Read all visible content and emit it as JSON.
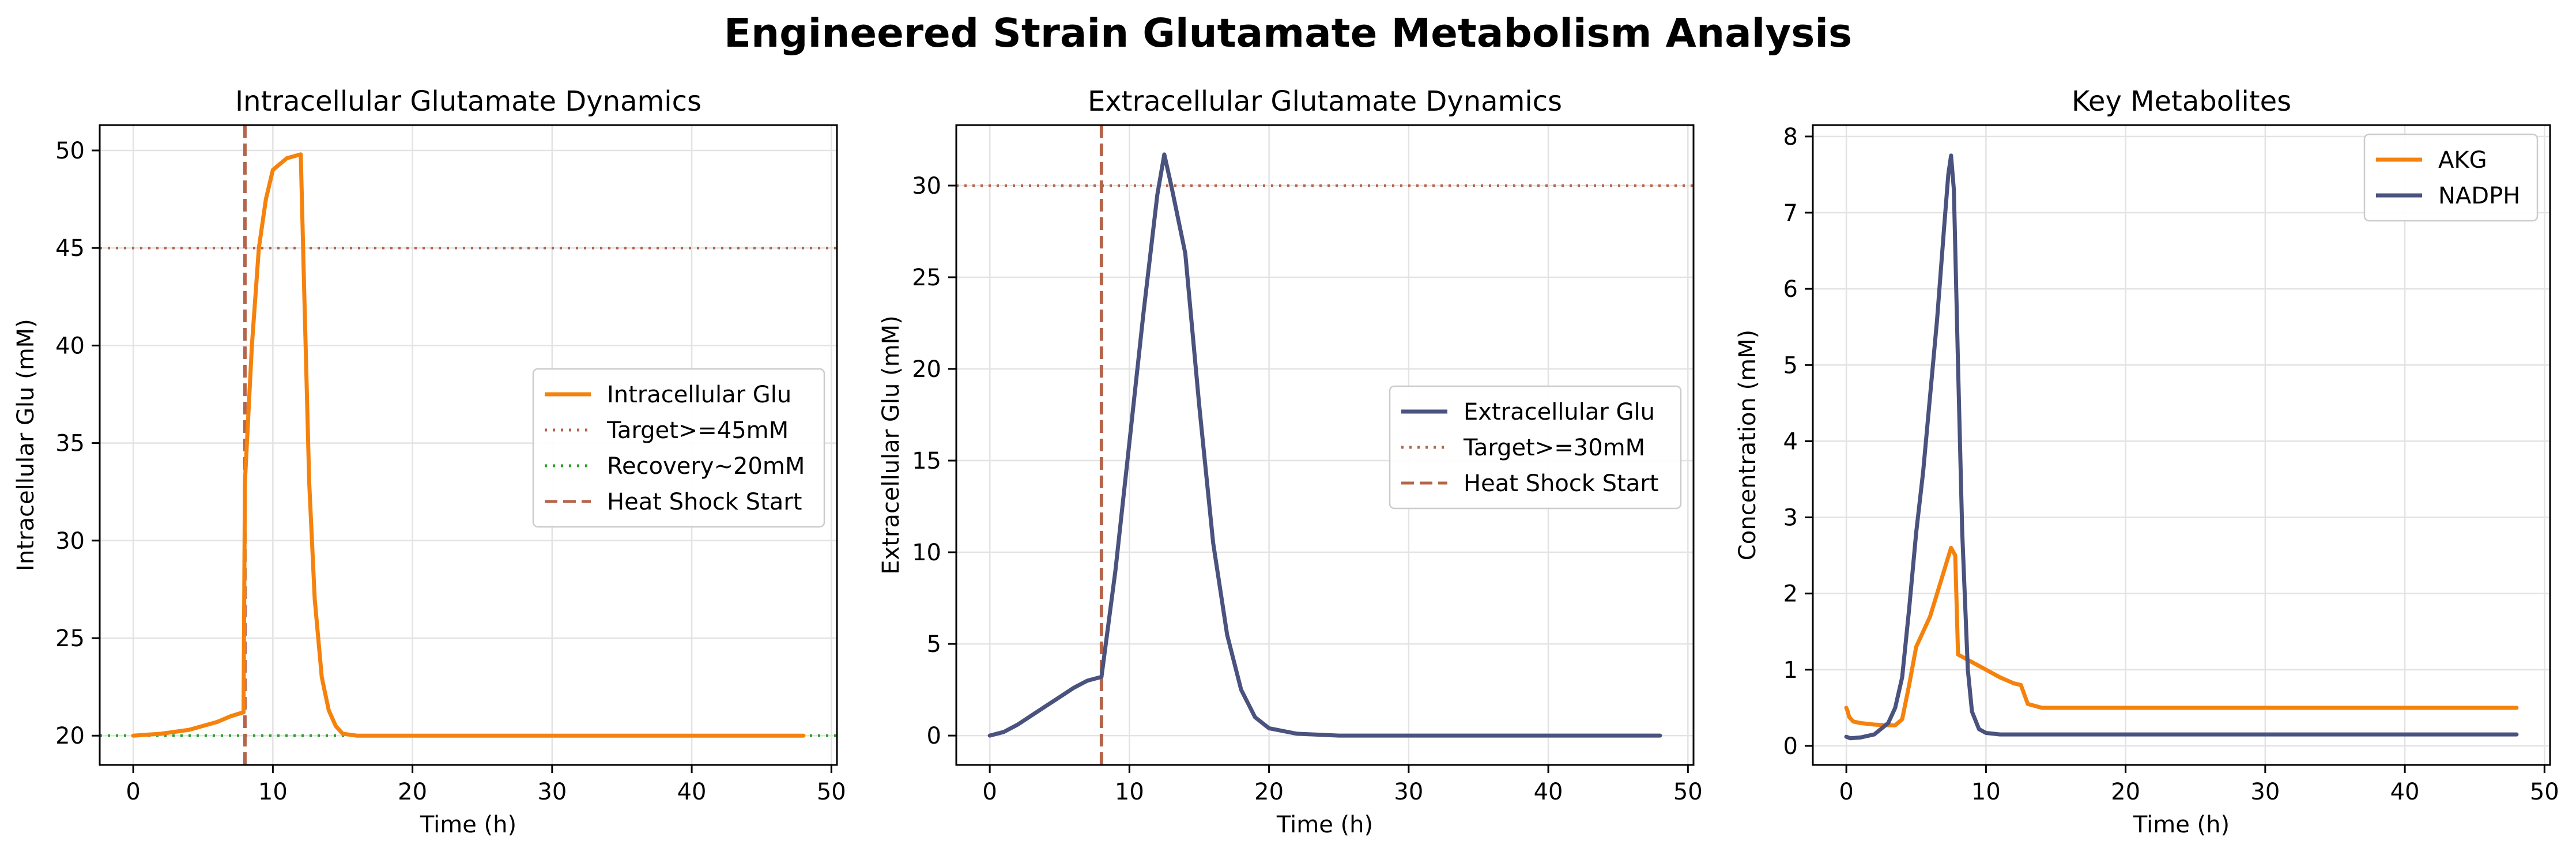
{
  "figure": {
    "title": "Engineered Strain Glutamate Metabolism Analysis"
  },
  "colors": {
    "orange": "#f5820d",
    "navy": "#4a527e",
    "rust": "#b5654a",
    "green": "#2ca02c",
    "grid": "#e3e3e3"
  },
  "chart_data": [
    {
      "type": "line",
      "title": "Intracellular Glutamate Dynamics",
      "xlabel": "Time (h)",
      "ylabel": "Intracellular Glu (mM)",
      "xlim": [
        -2.4,
        50.4
      ],
      "ylim": [
        18.5,
        51.3
      ],
      "xticks": [
        0,
        10,
        20,
        30,
        40,
        50
      ],
      "yticks": [
        20,
        25,
        30,
        35,
        40,
        45,
        50
      ],
      "grid": true,
      "legend": {
        "position": "center-right",
        "entries": [
          "Intracellular Glu",
          "Target>=45mM",
          "Recovery~20mM",
          "Heat Shock Start"
        ]
      },
      "series": [
        {
          "name": "Intracellular Glu",
          "color": "#f5820d",
          "style": "solid",
          "x": [
            0,
            2,
            4,
            6,
            7,
            7.9,
            8,
            8.5,
            9,
            9.5,
            10,
            11,
            12,
            12.2,
            12.6,
            13,
            13.5,
            14,
            14.5,
            15,
            16,
            20,
            48
          ],
          "y": [
            20,
            20.1,
            20.3,
            20.7,
            21.0,
            21.2,
            33,
            40,
            45,
            47.5,
            49,
            49.6,
            49.8,
            44,
            33,
            27,
            23,
            21.3,
            20.5,
            20.1,
            20,
            20,
            20
          ]
        }
      ],
      "hlines": [
        {
          "name": "Target>=45mM",
          "y": 45,
          "color": "#b5654a",
          "style": "dotted"
        },
        {
          "name": "Recovery~20mM",
          "y": 20,
          "color": "#2ca02c",
          "style": "dotted"
        }
      ],
      "vlines": [
        {
          "name": "Heat Shock Start",
          "x": 8,
          "color": "#b5654a",
          "style": "dashed"
        }
      ]
    },
    {
      "type": "line",
      "title": "Extracellular Glutamate Dynamics",
      "xlabel": "Time (h)",
      "ylabel": "Extracellular Glu (mM)",
      "xlim": [
        -2.4,
        50.4
      ],
      "ylim": [
        -1.6,
        33.3
      ],
      "xticks": [
        0,
        10,
        20,
        30,
        40,
        50
      ],
      "yticks": [
        0,
        5,
        10,
        15,
        20,
        25,
        30
      ],
      "grid": true,
      "legend": {
        "position": "center-right",
        "entries": [
          "Extracellular Glu",
          "Target>=30mM",
          "Heat Shock Start"
        ]
      },
      "series": [
        {
          "name": "Extracellular Glu",
          "color": "#4a527e",
          "style": "solid",
          "x": [
            0,
            1,
            2,
            3,
            4,
            5,
            6,
            7,
            8,
            9,
            10,
            11,
            12,
            12.5,
            13,
            14,
            15,
            16,
            17,
            18,
            19,
            20,
            22,
            25,
            30,
            48
          ],
          "y": [
            0,
            0.2,
            0.6,
            1.1,
            1.6,
            2.1,
            2.6,
            3.0,
            3.2,
            9,
            16,
            23,
            29.5,
            31.7,
            30,
            26.3,
            18,
            10.5,
            5.5,
            2.5,
            1.0,
            0.4,
            0.1,
            0,
            0,
            0
          ]
        }
      ],
      "hlines": [
        {
          "name": "Target>=30mM",
          "y": 30,
          "color": "#b5654a",
          "style": "dotted"
        }
      ],
      "vlines": [
        {
          "name": "Heat Shock Start",
          "x": 8,
          "color": "#b5654a",
          "style": "dashed"
        }
      ]
    },
    {
      "type": "line",
      "title": "Key Metabolites",
      "xlabel": "Time (h)",
      "ylabel": "Concentration (mM)",
      "xlim": [
        -2.4,
        50.4
      ],
      "ylim": [
        -0.25,
        8.15
      ],
      "xticks": [
        0,
        10,
        20,
        30,
        40,
        50
      ],
      "yticks": [
        0,
        1,
        2,
        3,
        4,
        5,
        6,
        7,
        8
      ],
      "grid": true,
      "legend": {
        "position": "top-right",
        "entries": [
          "AKG",
          "NADPH"
        ]
      },
      "series": [
        {
          "name": "AKG",
          "color": "#f5820d",
          "style": "solid",
          "x": [
            0,
            0.1,
            0.2,
            0.5,
            1,
            2,
            3,
            3.5,
            4,
            4.5,
            5,
            6,
            7,
            7.5,
            7.8,
            8,
            9,
            10,
            11,
            12,
            12.5,
            13,
            14,
            20,
            48
          ],
          "y": [
            0.5,
            0.45,
            0.38,
            0.32,
            0.3,
            0.28,
            0.27,
            0.27,
            0.35,
            0.8,
            1.3,
            1.7,
            2.3,
            2.6,
            2.5,
            1.2,
            1.1,
            1.0,
            0.9,
            0.82,
            0.8,
            0.55,
            0.5,
            0.5,
            0.5
          ]
        },
        {
          "name": "NADPH",
          "color": "#4a527e",
          "style": "solid",
          "x": [
            0,
            0.3,
            1,
            2,
            3,
            3.5,
            4,
            4.5,
            5,
            5.5,
            6,
            6.5,
            7,
            7.3,
            7.5,
            7.7,
            8,
            8.3,
            8.7,
            9,
            9.5,
            10,
            11,
            14,
            48
          ],
          "y": [
            0.12,
            0.1,
            0.11,
            0.15,
            0.3,
            0.5,
            0.9,
            1.8,
            2.8,
            3.6,
            4.6,
            5.6,
            6.8,
            7.5,
            7.75,
            7.3,
            5.0,
            2.8,
            1.0,
            0.45,
            0.22,
            0.17,
            0.15,
            0.15,
            0.15
          ]
        }
      ],
      "hlines": [],
      "vlines": []
    }
  ]
}
